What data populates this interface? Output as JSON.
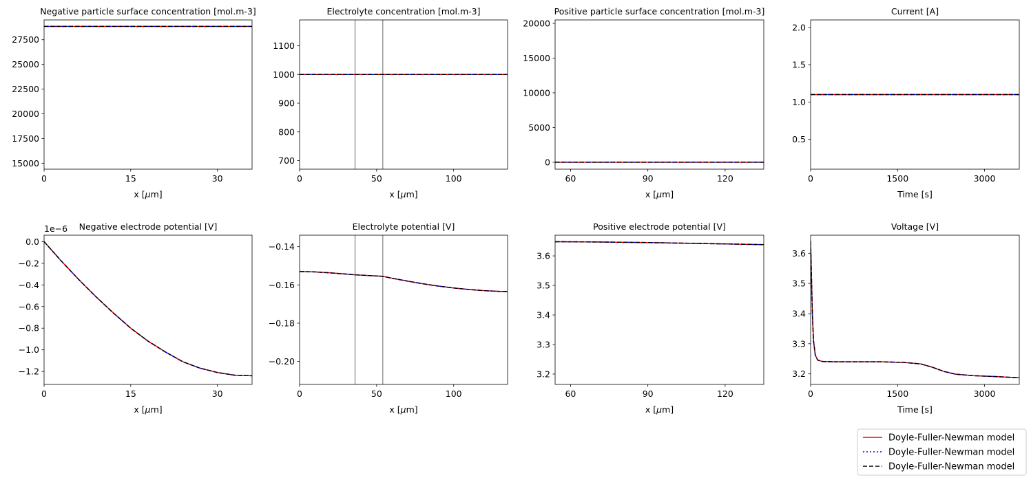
{
  "legend": {
    "placement": "bottom-right",
    "entries": [
      {
        "label": "Doyle-Fuller-Newman model",
        "color": "#ff0000",
        "style": "solid"
      },
      {
        "label": "Doyle-Fuller-Newman model",
        "color": "#0000ff",
        "style": "dotted"
      },
      {
        "label": "Doyle-Fuller-Newman model",
        "color": "#000000",
        "style": "dashed"
      }
    ]
  },
  "chart_data": [
    {
      "type": "line",
      "title": "Negative particle surface concentration [mol.m-3]",
      "xlabel": "x [$\\mu$m]",
      "xlim": [
        0,
        36
      ],
      "ylim": [
        14400,
        29500
      ],
      "xticks": [
        0,
        15,
        30
      ],
      "xticklabels": [
        "0",
        "15",
        "30"
      ],
      "yticks": [
        15000,
        17500,
        20000,
        22500,
        25000,
        27500
      ],
      "yticklabels": [
        "15000",
        "17500",
        "20000",
        "22500",
        "25000",
        "27500"
      ],
      "x": [
        0,
        36
      ],
      "series": [
        {
          "values": [
            28850,
            28850
          ]
        }
      ]
    },
    {
      "type": "line",
      "title": "Electrolyte concentration [mol.m-3]",
      "xlabel": "x [$\\mu$m]",
      "xlim": [
        0,
        135
      ],
      "ylim": [
        670,
        1190
      ],
      "xticks": [
        0,
        50,
        100
      ],
      "xticklabels": [
        "0",
        "50",
        "100"
      ],
      "yticks": [
        700,
        800,
        900,
        1000,
        1100
      ],
      "yticklabels": [
        "700",
        "800",
        "900",
        "1000",
        "1100"
      ],
      "vlines": [
        36,
        54
      ],
      "x": [
        0,
        135
      ],
      "series": [
        {
          "values": [
            1000,
            1000
          ]
        }
      ]
    },
    {
      "type": "line",
      "title": "Positive particle surface concentration [mol.m-3]",
      "xlabel": "x [$\\mu$m]",
      "xlim": [
        54,
        135
      ],
      "ylim": [
        -1000,
        20500
      ],
      "xticks": [
        60,
        90,
        120
      ],
      "xticklabels": [
        "60",
        "90",
        "120"
      ],
      "yticks": [
        0,
        5000,
        10000,
        15000,
        20000
      ],
      "yticklabels": [
        "0",
        "5000",
        "10000",
        "15000",
        "20000"
      ],
      "x": [
        54,
        135
      ],
      "series": [
        {
          "values": [
            0,
            0
          ]
        }
      ]
    },
    {
      "type": "line",
      "title": "Current [A]",
      "xlabel": "Time [s]",
      "xlim": [
        0,
        3600
      ],
      "ylim": [
        0.1,
        2.1
      ],
      "xticks": [
        0,
        1500,
        3000
      ],
      "xticklabels": [
        "0",
        "1500",
        "3000"
      ],
      "yticks": [
        0.5,
        1.0,
        1.5,
        2.0
      ],
      "yticklabels": [
        "0.5",
        "1.0",
        "1.5",
        "2.0"
      ],
      "x": [
        0,
        3600
      ],
      "series": [
        {
          "values": [
            1.1,
            1.1
          ]
        }
      ]
    },
    {
      "type": "line",
      "title": "Negative electrode potential [V]",
      "xlabel": "x [$\\mu$m]",
      "offset_text": "1e−6",
      "xlim": [
        0,
        36
      ],
      "ylim": [
        -1.32,
        0.06
      ],
      "xticks": [
        0,
        15,
        30
      ],
      "xticklabels": [
        "0",
        "15",
        "30"
      ],
      "yticks": [
        -1.2,
        -1.0,
        -0.8,
        -0.6,
        -0.4,
        -0.2,
        0.0
      ],
      "yticklabels": [
        "−1.2",
        "−1.0",
        "−0.8",
        "−0.6",
        "−0.4",
        "−0.2",
        "0.0"
      ],
      "x": [
        0,
        3,
        6,
        9,
        12,
        15,
        18,
        21,
        24,
        27,
        30,
        33,
        36
      ],
      "series": [
        {
          "values": [
            0,
            -0.18,
            -0.35,
            -0.51,
            -0.66,
            -0.8,
            -0.92,
            -1.02,
            -1.11,
            -1.17,
            -1.21,
            -1.235,
            -1.24
          ]
        }
      ]
    },
    {
      "type": "line",
      "title": "Electrolyte potential [V]",
      "xlabel": "x [$\\mu$m]",
      "xlim": [
        0,
        135
      ],
      "ylim": [
        -0.212,
        -0.134
      ],
      "xticks": [
        0,
        50,
        100
      ],
      "xticklabels": [
        "0",
        "50",
        "100"
      ],
      "yticks": [
        -0.2,
        -0.18,
        -0.16,
        -0.14
      ],
      "yticklabels": [
        "−0.20",
        "−0.18",
        "−0.16",
        "−0.14"
      ],
      "vlines": [
        36,
        54
      ],
      "x": [
        0,
        10,
        20,
        30,
        36,
        45,
        54,
        60,
        70,
        80,
        90,
        100,
        110,
        120,
        130,
        135
      ],
      "series": [
        {
          "values": [
            -0.153,
            -0.1532,
            -0.1537,
            -0.1543,
            -0.1547,
            -0.1551,
            -0.1555,
            -0.1565,
            -0.158,
            -0.1594,
            -0.1606,
            -0.1616,
            -0.1624,
            -0.163,
            -0.1634,
            -0.1635
          ]
        }
      ]
    },
    {
      "type": "line",
      "title": "Positive electrode potential [V]",
      "xlabel": "x [$\\mu$m]",
      "xlim": [
        54,
        135
      ],
      "ylim": [
        3.165,
        3.67
      ],
      "xticks": [
        60,
        90,
        120
      ],
      "xticklabels": [
        "60",
        "90",
        "120"
      ],
      "yticks": [
        3.2,
        3.3,
        3.4,
        3.5,
        3.6
      ],
      "yticklabels": [
        "3.2",
        "3.3",
        "3.4",
        "3.5",
        "3.6"
      ],
      "x": [
        54,
        70,
        90,
        110,
        135
      ],
      "series": [
        {
          "values": [
            3.648,
            3.647,
            3.645,
            3.642,
            3.638
          ]
        }
      ]
    },
    {
      "type": "line",
      "title": "Voltage [V]",
      "xlabel": "Time [s]",
      "xlim": [
        0,
        3600
      ],
      "ylim": [
        3.165,
        3.66
      ],
      "xticks": [
        0,
        1500,
        3000
      ],
      "xticklabels": [
        "0",
        "1500",
        "3000"
      ],
      "yticks": [
        3.2,
        3.3,
        3.4,
        3.5,
        3.6
      ],
      "yticklabels": [
        "3.2",
        "3.3",
        "3.4",
        "3.5",
        "3.6"
      ],
      "x": [
        0,
        15,
        30,
        50,
        80,
        120,
        200,
        400,
        800,
        1200,
        1600,
        1900,
        2100,
        2300,
        2500,
        2800,
        3200,
        3600
      ],
      "series": [
        {
          "values": [
            3.64,
            3.52,
            3.4,
            3.31,
            3.263,
            3.246,
            3.241,
            3.24,
            3.24,
            3.24,
            3.238,
            3.233,
            3.222,
            3.208,
            3.199,
            3.194,
            3.191,
            3.187
          ]
        }
      ]
    }
  ]
}
